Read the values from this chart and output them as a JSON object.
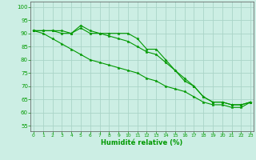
{
  "xlabel": "Humidité relative (%)",
  "background_color": "#cceee4",
  "grid_color": "#aad4c8",
  "line_color": "#009900",
  "x_ticks": [
    0,
    1,
    2,
    3,
    4,
    5,
    6,
    7,
    8,
    9,
    10,
    11,
    12,
    13,
    14,
    15,
    16,
    17,
    18,
    19,
    20,
    21,
    22,
    23
  ],
  "y_ticks": [
    55,
    60,
    65,
    70,
    75,
    80,
    85,
    90,
    95,
    100
  ],
  "xlim": [
    -0.3,
    23.3
  ],
  "ylim": [
    53,
    102
  ],
  "series": [
    [
      91,
      91,
      91,
      91,
      90,
      93,
      91,
      90,
      90,
      90,
      90,
      88,
      84,
      84,
      80,
      76,
      73,
      70,
      66,
      64,
      64,
      63,
      63,
      64
    ],
    [
      91,
      90,
      88,
      86,
      84,
      82,
      80,
      79,
      78,
      77,
      76,
      75,
      73,
      72,
      70,
      69,
      68,
      66,
      64,
      63,
      63,
      62,
      62,
      64
    ],
    [
      91,
      91,
      91,
      90,
      90,
      92,
      90,
      90,
      89,
      88,
      87,
      85,
      83,
      82,
      79,
      76,
      72,
      70,
      66,
      64,
      64,
      63,
      63,
      64
    ]
  ]
}
